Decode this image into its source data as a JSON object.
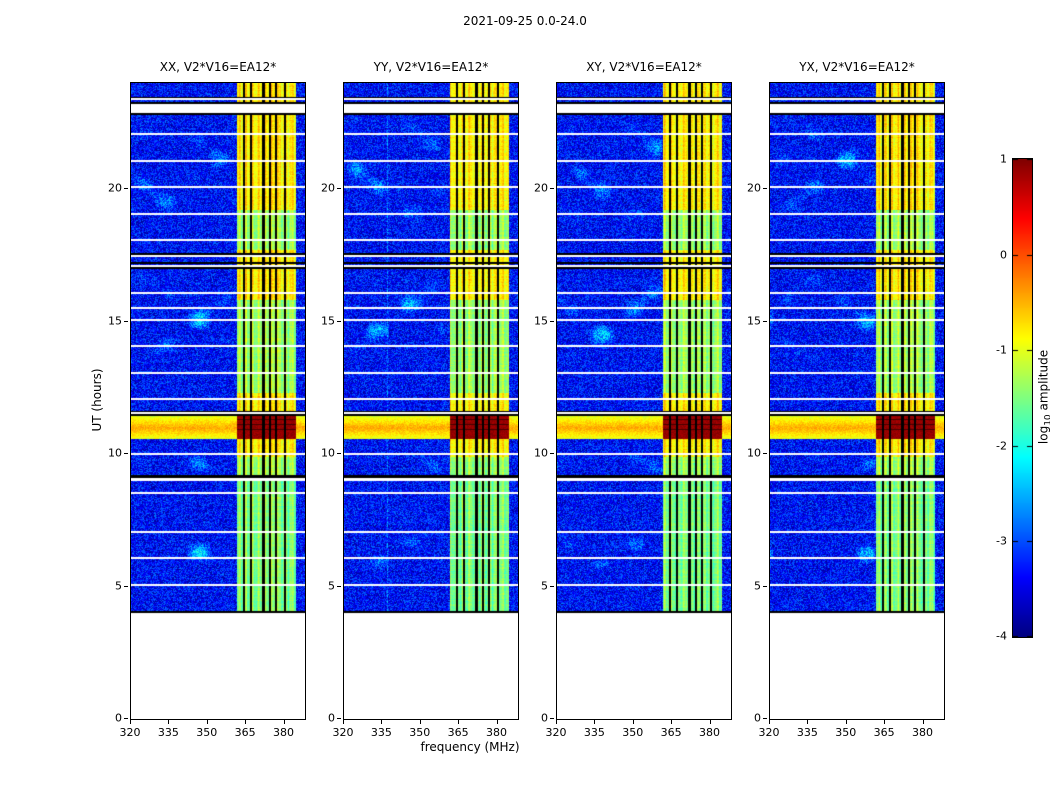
{
  "figure": {
    "title": "2021-09-25 0.0-24.0",
    "xlabel": "frequency (MHz)",
    "ylabel": "UT (hours)"
  },
  "panels": [
    {
      "id": "XX",
      "title": "XX, V2*V16=EA12*"
    },
    {
      "id": "YY",
      "title": "YY, V2*V16=EA12*"
    },
    {
      "id": "XY",
      "title": "XY, V2*V16=EA12*"
    },
    {
      "id": "YX",
      "title": "YX, V2*V16=EA12*"
    }
  ],
  "colorbar": {
    "label_prefix": "log",
    "label_sub": "10",
    "label_suffix": " amplitude"
  },
  "chart_data": {
    "type": "heatmap",
    "title": "2021-09-25 0.0-24.0",
    "xlabel": "frequency (MHz)",
    "ylabel": "UT (hours)",
    "panels": [
      "XX, V2*V16=EA12*",
      "YY, V2*V16=EA12*",
      "XY, V2*V16=EA12*",
      "YX, V2*V16=EA12*"
    ],
    "xlim": [
      320,
      388
    ],
    "ylim": [
      0,
      24
    ],
    "x_ticks": [
      320,
      335,
      350,
      365,
      380
    ],
    "y_ticks": [
      0,
      5,
      10,
      15,
      20
    ],
    "colormap": "jet",
    "clim": [
      -4,
      1
    ],
    "colorbar_ticks": [
      1,
      0,
      -1,
      -2,
      -3,
      -4
    ],
    "colorbar_label": "log10 amplitude",
    "features": {
      "background_level": -3.35,
      "no_data_ut": [
        [
          0,
          4.0
        ]
      ],
      "rfi_band_mhz": [
        361.5,
        384.5
      ],
      "rfi_band_level": -1.35,
      "flagged_channels_mhz": [
        364.3,
        366.8,
        371.8,
        374.3,
        376.8,
        380.3
      ],
      "burst_ut": [
        10.55,
        11.42
      ],
      "burst_divider_ut": [
        [
          10.7,
          10.73
        ],
        [
          10.9,
          10.93
        ],
        [
          11.1,
          11.13
        ],
        [
          11.28,
          11.31
        ]
      ],
      "band_bright_ut": [
        [
          9.9,
          12.3
        ],
        [
          15.8,
          17.7
        ],
        [
          19.2,
          24.0
        ]
      ],
      "diffuse_patch_ut": [
        [
          5.6,
          6.9
        ],
        [
          9.2,
          10.05
        ],
        [
          13.4,
          16.9
        ],
        [
          18.6,
          22.8
        ]
      ],
      "faint_line_mhz": 337,
      "white_gaps_ut": [
        [
          5.02,
          5.1
        ],
        [
          6.02,
          6.1
        ],
        [
          7.02,
          7.1
        ],
        [
          8.48,
          8.56
        ],
        [
          9.0,
          9.08
        ],
        [
          9.98,
          10.05
        ],
        [
          11.52,
          11.58
        ],
        [
          12.02,
          12.1
        ],
        [
          13.02,
          13.1
        ],
        [
          14.02,
          14.1
        ],
        [
          15.02,
          15.1
        ],
        [
          15.48,
          15.56
        ],
        [
          16.02,
          16.1
        ],
        [
          17.06,
          17.14
        ],
        [
          17.44,
          17.52
        ],
        [
          18.02,
          18.1
        ],
        [
          19.02,
          19.1
        ],
        [
          20.02,
          20.1
        ],
        [
          21.02,
          21.1
        ],
        [
          22.02,
          22.1
        ],
        [
          22.87,
          23.2
        ],
        [
          23.35,
          23.43
        ]
      ],
      "flag_rows_ut": [
        [
          4.0,
          4.06
        ],
        [
          9.1,
          9.22
        ],
        [
          11.44,
          11.52
        ],
        [
          11.58,
          11.64
        ],
        [
          16.98,
          17.06
        ],
        [
          17.16,
          17.24
        ],
        [
          17.52,
          17.6
        ],
        [
          22.8,
          22.87
        ],
        [
          23.2,
          23.27
        ],
        [
          23.43,
          23.49
        ]
      ]
    }
  }
}
